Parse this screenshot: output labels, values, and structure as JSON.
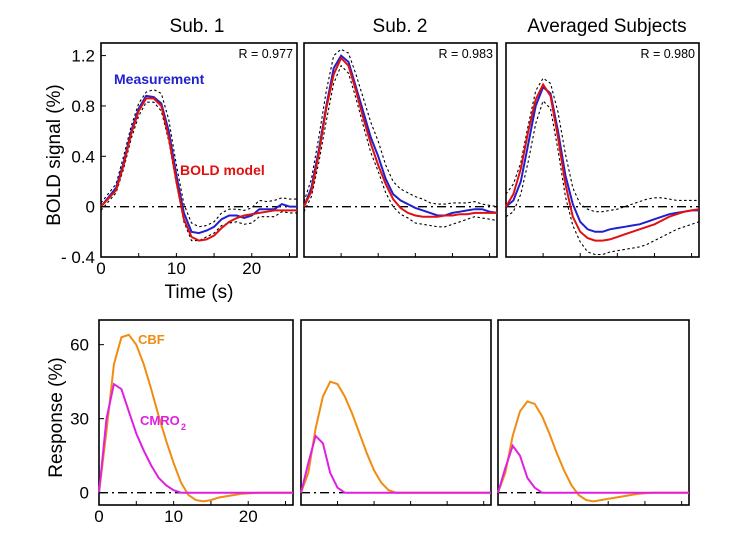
{
  "chart_data": [
    {
      "type": "line",
      "row": "top",
      "panel_titles": [
        "Sub. 1",
        "Sub. 2",
        "Averaged Subjects"
      ],
      "ylabel": "BOLD signal (%)",
      "xlabel": "Time (s)",
      "xlim": [
        0,
        26
      ],
      "ylim": [
        -0.4,
        1.3
      ],
      "yticks": [
        1.2,
        0.8,
        0.4,
        0,
        -0.4
      ],
      "ytick_labels": [
        "1.2",
        "0.8",
        "0.4",
        "0",
        "- 0.4"
      ],
      "xticks": [
        0,
        10,
        20
      ],
      "xtick_labels": [
        "0",
        "10",
        "20"
      ],
      "baseline": 0,
      "legend": {
        "measurement": "Measurement",
        "model": "BOLD model",
        "measurement_color": "#2020d0",
        "model_color": "#e01010"
      },
      "panels": [
        {
          "r_label": "R = 0.977",
          "x": [
            0,
            2,
            3,
            4,
            5,
            6,
            7,
            8,
            9,
            10,
            11,
            12,
            13,
            14,
            15,
            16,
            17,
            18,
            19,
            20,
            21,
            22,
            23,
            24,
            25,
            26
          ],
          "measurement": [
            0.0,
            0.15,
            0.35,
            0.6,
            0.78,
            0.88,
            0.87,
            0.82,
            0.6,
            0.25,
            -0.05,
            -0.2,
            -0.21,
            -0.19,
            -0.16,
            -0.1,
            -0.07,
            -0.07,
            -0.09,
            -0.07,
            -0.02,
            -0.02,
            -0.02,
            0.02,
            0.0,
            0.0
          ],
          "model": [
            0.0,
            0.13,
            0.33,
            0.58,
            0.76,
            0.86,
            0.86,
            0.8,
            0.55,
            0.2,
            -0.1,
            -0.24,
            -0.27,
            -0.26,
            -0.23,
            -0.17,
            -0.12,
            -0.09,
            -0.07,
            -0.06,
            -0.05,
            -0.04,
            -0.03,
            -0.03,
            -0.03,
            -0.03
          ],
          "ci_upper": [
            0.03,
            0.18,
            0.4,
            0.64,
            0.82,
            0.91,
            0.93,
            0.9,
            0.69,
            0.33,
            0.02,
            -0.13,
            -0.16,
            -0.15,
            -0.12,
            -0.05,
            -0.02,
            -0.02,
            -0.03,
            -0.01,
            0.05,
            0.04,
            0.05,
            0.07,
            0.06,
            0.06
          ],
          "ci_lower": [
            -0.03,
            0.11,
            0.3,
            0.54,
            0.72,
            0.83,
            0.83,
            0.76,
            0.52,
            0.18,
            -0.12,
            -0.27,
            -0.27,
            -0.24,
            -0.21,
            -0.15,
            -0.13,
            -0.12,
            -0.14,
            -0.13,
            -0.08,
            -0.08,
            -0.08,
            -0.04,
            -0.05,
            -0.05
          ]
        },
        {
          "r_label": "R = 0.983",
          "x": [
            0,
            1,
            2,
            3,
            4,
            5,
            6,
            7,
            8,
            9,
            10,
            11,
            12,
            13,
            14,
            15,
            16,
            17,
            18,
            19,
            20,
            21,
            22,
            23,
            24,
            25,
            26
          ],
          "measurement": [
            0.0,
            0.15,
            0.45,
            0.8,
            1.1,
            1.2,
            1.15,
            0.95,
            0.75,
            0.55,
            0.4,
            0.22,
            0.1,
            0.05,
            0.02,
            -0.01,
            -0.03,
            -0.05,
            -0.07,
            -0.07,
            -0.05,
            -0.04,
            -0.03,
            -0.02,
            -0.02,
            -0.04,
            -0.05
          ],
          "model": [
            0.0,
            0.12,
            0.42,
            0.78,
            1.05,
            1.18,
            1.12,
            0.92,
            0.7,
            0.5,
            0.33,
            0.18,
            0.06,
            -0.01,
            -0.05,
            -0.07,
            -0.08,
            -0.08,
            -0.08,
            -0.07,
            -0.07,
            -0.06,
            -0.06,
            -0.05,
            -0.05,
            -0.05,
            -0.05
          ],
          "ci_upper": [
            0.04,
            0.22,
            0.55,
            0.92,
            1.2,
            1.25,
            1.22,
            1.05,
            0.86,
            0.67,
            0.52,
            0.33,
            0.2,
            0.14,
            0.11,
            0.08,
            0.06,
            0.03,
            0.02,
            0.02,
            0.03,
            0.03,
            0.03,
            0.04,
            0.02,
            0.01,
            0.0
          ],
          "ci_lower": [
            -0.04,
            0.08,
            0.35,
            0.68,
            0.98,
            1.12,
            1.06,
            0.86,
            0.64,
            0.43,
            0.28,
            0.11,
            0.0,
            -0.06,
            -0.09,
            -0.13,
            -0.14,
            -0.15,
            -0.16,
            -0.16,
            -0.14,
            -0.12,
            -0.1,
            -0.08,
            -0.09,
            -0.1,
            -0.11
          ]
        },
        {
          "r_label": "R = 0.980",
          "x": [
            0,
            1,
            2,
            3,
            4,
            5,
            6,
            7,
            8,
            9,
            10,
            11,
            12,
            13,
            14,
            15,
            16,
            17,
            18,
            19,
            20,
            21,
            22,
            23,
            24,
            25,
            26
          ],
          "measurement": [
            0.0,
            0.05,
            0.2,
            0.5,
            0.8,
            0.95,
            0.9,
            0.6,
            0.25,
            0.02,
            -0.12,
            -0.18,
            -0.2,
            -0.2,
            -0.18,
            -0.17,
            -0.16,
            -0.15,
            -0.14,
            -0.12,
            -0.1,
            -0.08,
            -0.06,
            -0.05,
            -0.04,
            -0.03,
            -0.03
          ],
          "model": [
            0.0,
            0.1,
            0.3,
            0.6,
            0.85,
            0.97,
            0.88,
            0.55,
            0.18,
            -0.08,
            -0.2,
            -0.25,
            -0.27,
            -0.27,
            -0.26,
            -0.24,
            -0.22,
            -0.2,
            -0.18,
            -0.16,
            -0.14,
            -0.11,
            -0.08,
            -0.06,
            -0.04,
            -0.03,
            -0.02
          ],
          "ci_upper": [
            0.1,
            0.18,
            0.35,
            0.65,
            0.92,
            1.02,
            0.98,
            0.75,
            0.42,
            0.15,
            0.02,
            -0.02,
            -0.04,
            -0.04,
            -0.03,
            -0.02,
            0.0,
            0.02,
            0.04,
            0.06,
            0.07,
            0.07,
            0.06,
            0.05,
            0.05,
            0.05,
            0.05
          ],
          "ci_lower": [
            -0.08,
            -0.04,
            0.1,
            0.36,
            0.66,
            0.84,
            0.78,
            0.45,
            0.08,
            -0.15,
            -0.28,
            -0.36,
            -0.38,
            -0.38,
            -0.36,
            -0.35,
            -0.34,
            -0.33,
            -0.32,
            -0.3,
            -0.27,
            -0.24,
            -0.21,
            -0.18,
            -0.16,
            -0.14,
            -0.12
          ]
        }
      ]
    },
    {
      "type": "line",
      "row": "bottom",
      "ylabel": "Response (%)",
      "xlim": [
        0,
        26
      ],
      "ylim": [
        -5,
        70
      ],
      "yticks": [
        60,
        30,
        0
      ],
      "ytick_labels": [
        "60",
        "30",
        "0"
      ],
      "xticks": [
        0,
        10,
        20
      ],
      "xtick_labels": [
        "0",
        "10",
        "20"
      ],
      "baseline": 0,
      "legend": {
        "cbf": "CBF",
        "cmro2": "CMRO",
        "cmro2_sub": "2",
        "cbf_color": "#f08c10",
        "cmro2_color": "#e020e0"
      },
      "panels": [
        {
          "x": [
            0,
            1,
            2,
            3,
            4,
            5,
            6,
            7,
            8,
            9,
            10,
            11,
            12,
            13,
            14,
            15,
            16,
            17,
            18,
            19,
            20,
            21,
            22,
            23,
            24,
            25,
            26
          ],
          "cbf": [
            0,
            25,
            52,
            63,
            64,
            60,
            52,
            42,
            31,
            21,
            12,
            4,
            -1,
            -3,
            -3.5,
            -3,
            -2,
            -1.5,
            -1,
            -0.5,
            -0.3,
            -0.1,
            0,
            0,
            0,
            0,
            0
          ],
          "cmro2": [
            0,
            30,
            44,
            42,
            33,
            24,
            17,
            11,
            6,
            3,
            1,
            0,
            0,
            0,
            0,
            0,
            0,
            0,
            0,
            0,
            0,
            0,
            0,
            0,
            0,
            0,
            0
          ]
        },
        {
          "x": [
            0,
            1,
            2,
            3,
            4,
            5,
            6,
            7,
            8,
            9,
            10,
            11,
            12,
            13,
            14,
            15,
            16,
            17,
            18,
            19,
            20,
            21,
            22,
            23,
            24,
            25,
            26
          ],
          "cbf": [
            0,
            8,
            26,
            39,
            45,
            44,
            39,
            32,
            24,
            16,
            9,
            4,
            1,
            0,
            0,
            0,
            0,
            0,
            0,
            0,
            0,
            0,
            0,
            0,
            0,
            0,
            0
          ],
          "cmro2": [
            0,
            12,
            23,
            20,
            8,
            2,
            0,
            0,
            0,
            0,
            0,
            0,
            0,
            0,
            0,
            0,
            0,
            0,
            0,
            0,
            0,
            0,
            0,
            0,
            0,
            0,
            0
          ]
        },
        {
          "x": [
            0,
            1,
            2,
            3,
            4,
            5,
            6,
            7,
            8,
            9,
            10,
            11,
            12,
            13,
            14,
            15,
            16,
            17,
            18,
            19,
            20,
            21,
            22,
            23,
            24,
            25,
            26
          ],
          "cbf": [
            0,
            8,
            23,
            33,
            37,
            36,
            31,
            24,
            16,
            9,
            3,
            -1,
            -3,
            -3.5,
            -3,
            -2.5,
            -2,
            -1.5,
            -1,
            -0.5,
            -0.2,
            0,
            0,
            0,
            0,
            0,
            0
          ],
          "cmro2": [
            0,
            10,
            19,
            15,
            6,
            2,
            0,
            0,
            0,
            0,
            0,
            0,
            0,
            0,
            0,
            0,
            0,
            0,
            0,
            0,
            0,
            0,
            0,
            0,
            0,
            0,
            0
          ]
        }
      ]
    }
  ]
}
